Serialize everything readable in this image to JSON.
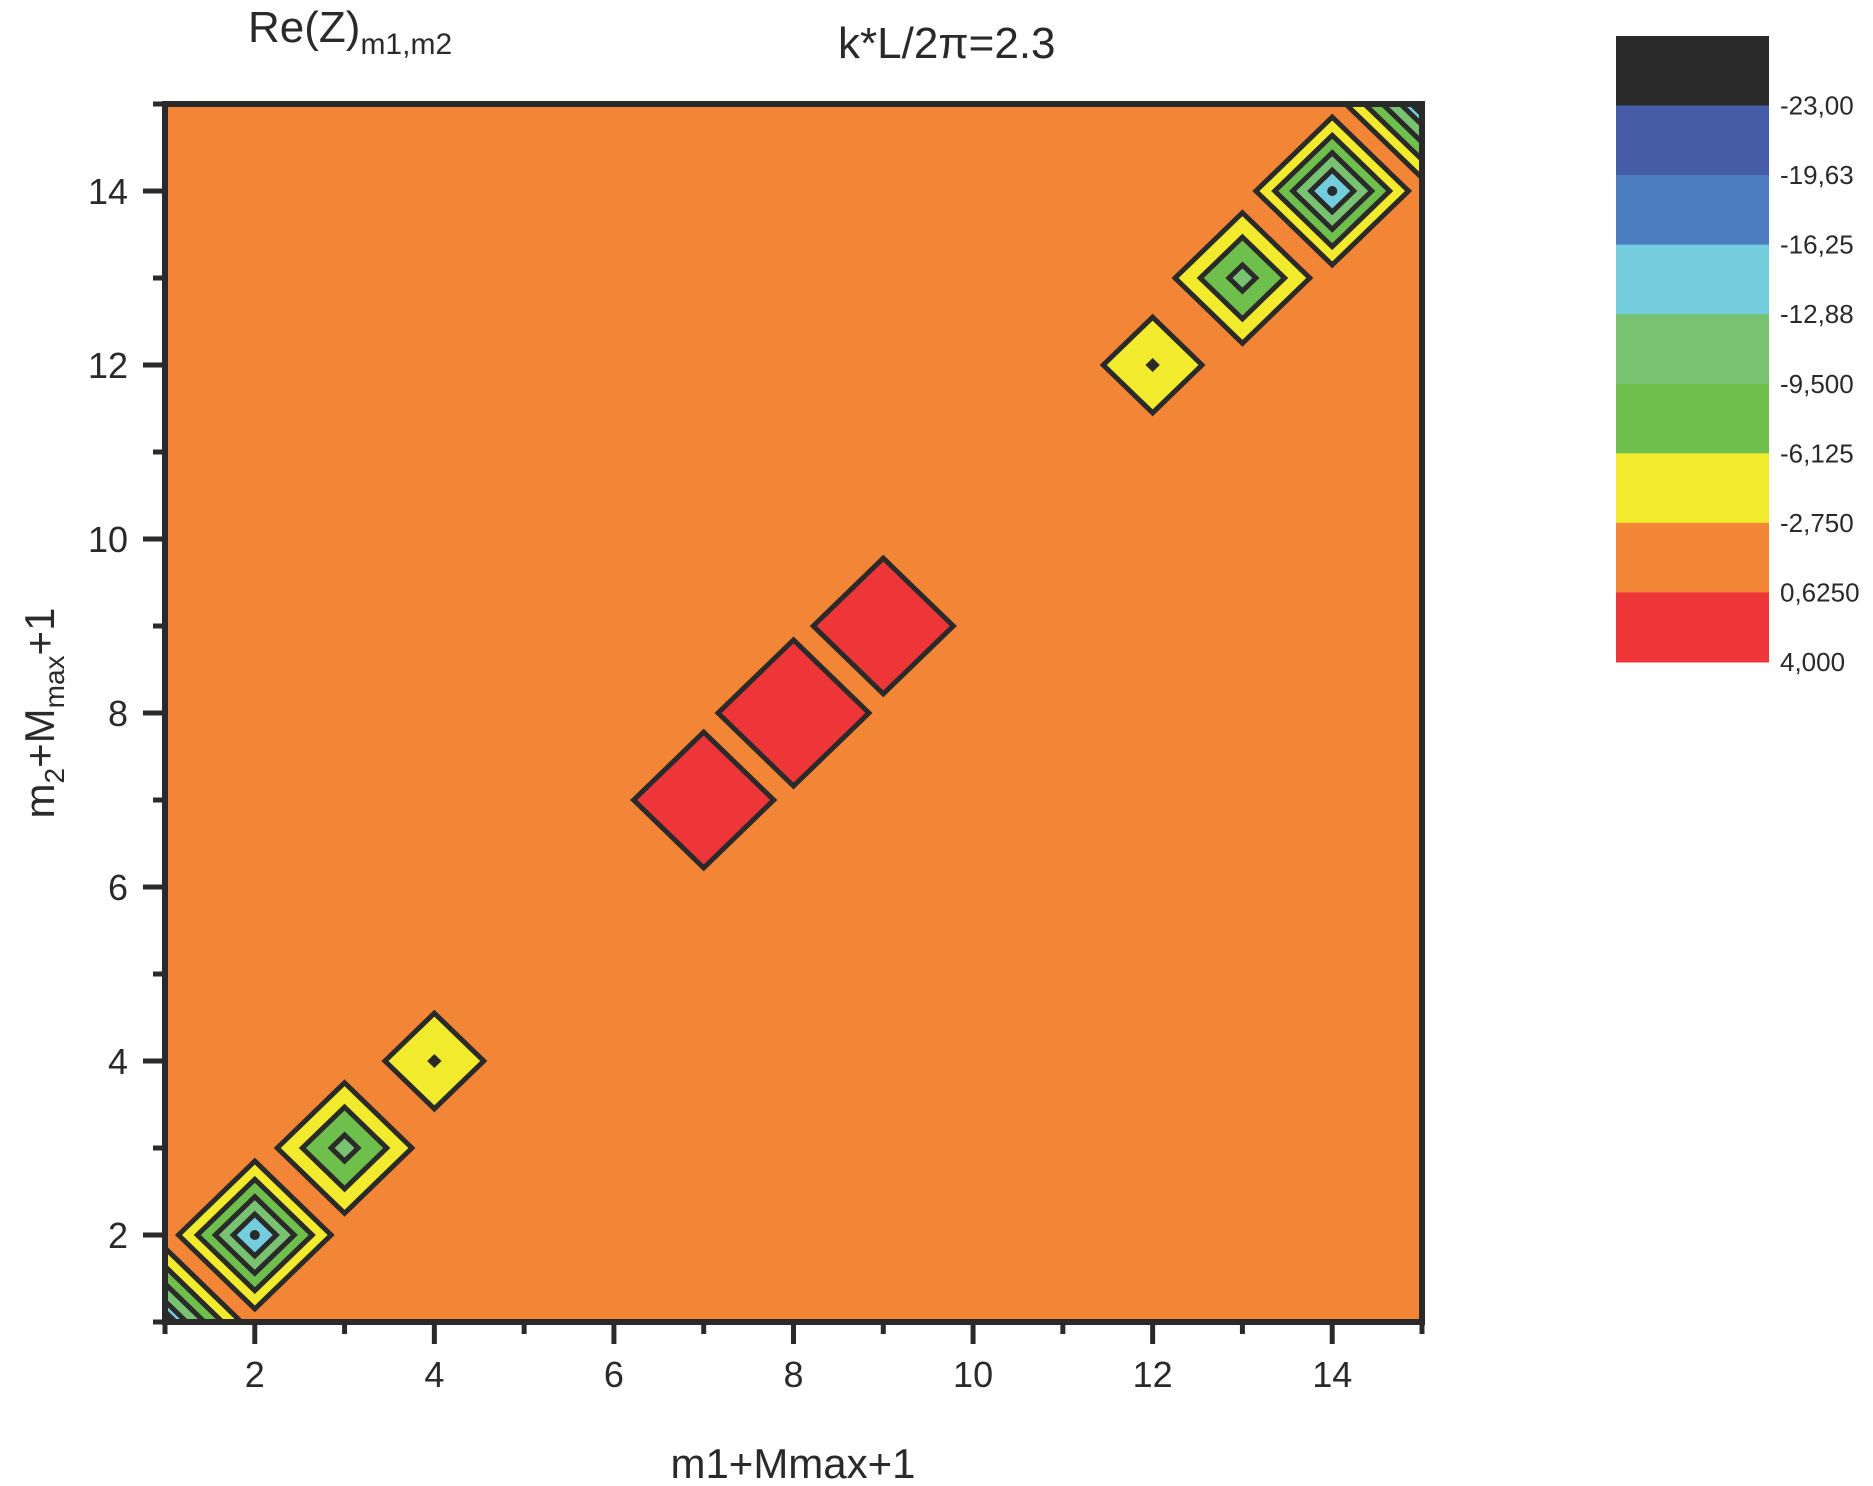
{
  "chart_data": {
    "type": "contour",
    "title_left": {
      "main": "Re(Z)",
      "subscript": "m1,m2"
    },
    "title_right": {
      "text": "k*L/2π=2.3"
    },
    "xlabel": "m1+Mmax+1",
    "ylabel": {
      "part1": "m",
      "sub1": "2",
      "part2": "+M",
      "sub2": "max",
      "part3": "+1"
    },
    "xlim": [
      1,
      15
    ],
    "ylim": [
      1,
      15
    ],
    "x_ticks": [
      2,
      4,
      6,
      8,
      10,
      12,
      14
    ],
    "x_tick_labels": [
      "2",
      "4",
      "6",
      "8",
      "10",
      "12",
      "14"
    ],
    "x_minor_ticks": [
      1,
      3,
      5,
      7,
      9,
      11,
      13,
      15
    ],
    "y_ticks": [
      2,
      4,
      6,
      8,
      10,
      12,
      14
    ],
    "y_tick_labels": [
      "2",
      "4",
      "6",
      "8",
      "10",
      "12",
      "14"
    ],
    "y_minor_ticks": [
      1,
      3,
      5,
      7,
      9,
      11,
      13,
      15
    ],
    "background_level": "-2,750 to 0,6250",
    "colorbar": {
      "placement": "right",
      "levels": [
        "-23,00",
        "-19,63",
        "-16,25",
        "-12,88",
        "-9,500",
        "-6,125",
        "-2,750",
        "0,6250",
        "4,000"
      ],
      "bands": [
        {
          "range": "below -23,00",
          "color": "#2a2a2a"
        },
        {
          "range": "-23,00 to -19,63",
          "color": "#465ca6"
        },
        {
          "range": "-19,63 to -16,25",
          "color": "#4c7dc0"
        },
        {
          "range": "-16,25 to -12,88",
          "color": "#74cddc"
        },
        {
          "range": "-12,88 to -9,500",
          "color": "#79c272"
        },
        {
          "range": "-9,500 to -6,125",
          "color": "#6fbf4d"
        },
        {
          "range": "-6,125 to -2,750",
          "color": "#f2ea2c"
        },
        {
          "range": "-2,750 to 0,6250",
          "color": "#f38536"
        },
        {
          "range": "0,6250 to 4,000",
          "color": "#ee3639"
        }
      ]
    },
    "features": [
      {
        "x": 2,
        "y": 2,
        "kind": "minimum",
        "rings": [
          "#f2ea2c",
          "#6fbf4d",
          "#79c272",
          "#74cddc"
        ],
        "sizes": [
          0.85,
          0.64,
          0.44,
          0.24
        ],
        "center_dot": true
      },
      {
        "x": 3,
        "y": 3,
        "kind": "minimum",
        "rings": [
          "#f2ea2c",
          "#6fbf4d",
          "#79c272"
        ],
        "sizes": [
          0.75,
          0.47,
          0.15
        ],
        "center_dot": false
      },
      {
        "x": 4,
        "y": 4,
        "kind": "minimum",
        "rings": [
          "#f2ea2c",
          "#6fbf4d"
        ],
        "sizes": [
          0.55,
          0.04
        ],
        "center_dot": false
      },
      {
        "x": 7,
        "y": 7,
        "kind": "maximum",
        "rings": [
          "#ee3639"
        ],
        "sizes": [
          0.78
        ],
        "center_dot": false
      },
      {
        "x": 8,
        "y": 8,
        "kind": "maximum",
        "rings": [
          "#ee3639"
        ],
        "sizes": [
          0.84
        ],
        "center_dot": false
      },
      {
        "x": 9,
        "y": 9,
        "kind": "maximum",
        "rings": [
          "#ee3639"
        ],
        "sizes": [
          0.78
        ],
        "center_dot": false
      },
      {
        "x": 12,
        "y": 12,
        "kind": "minimum",
        "rings": [
          "#f2ea2c",
          "#6fbf4d"
        ],
        "sizes": [
          0.55,
          0.04
        ],
        "center_dot": false
      },
      {
        "x": 13,
        "y": 13,
        "kind": "minimum",
        "rings": [
          "#f2ea2c",
          "#6fbf4d",
          "#79c272"
        ],
        "sizes": [
          0.75,
          0.47,
          0.15
        ],
        "center_dot": false
      },
      {
        "x": 14,
        "y": 14,
        "kind": "minimum",
        "rings": [
          "#f2ea2c",
          "#6fbf4d",
          "#79c272",
          "#74cddc"
        ],
        "sizes": [
          0.85,
          0.64,
          0.44,
          0.24
        ],
        "center_dot": true
      }
    ],
    "corner_features": [
      {
        "corner": "bottom-left",
        "x": 1,
        "y": 1,
        "rings": [
          "#f2ea2c",
          "#6fbf4d",
          "#79c272",
          "#74cddc",
          "#4c7dc0",
          "#465ca6"
        ],
        "sizes": [
          0.85,
          0.64,
          0.44,
          0.24,
          0.12,
          0.04
        ]
      },
      {
        "corner": "top-right",
        "x": 15,
        "y": 15,
        "rings": [
          "#f2ea2c",
          "#6fbf4d",
          "#79c272",
          "#74cddc",
          "#4c7dc0",
          "#465ca6"
        ],
        "sizes": [
          0.85,
          0.64,
          0.44,
          0.24,
          0.12,
          0.04
        ]
      }
    ],
    "grid": false
  }
}
